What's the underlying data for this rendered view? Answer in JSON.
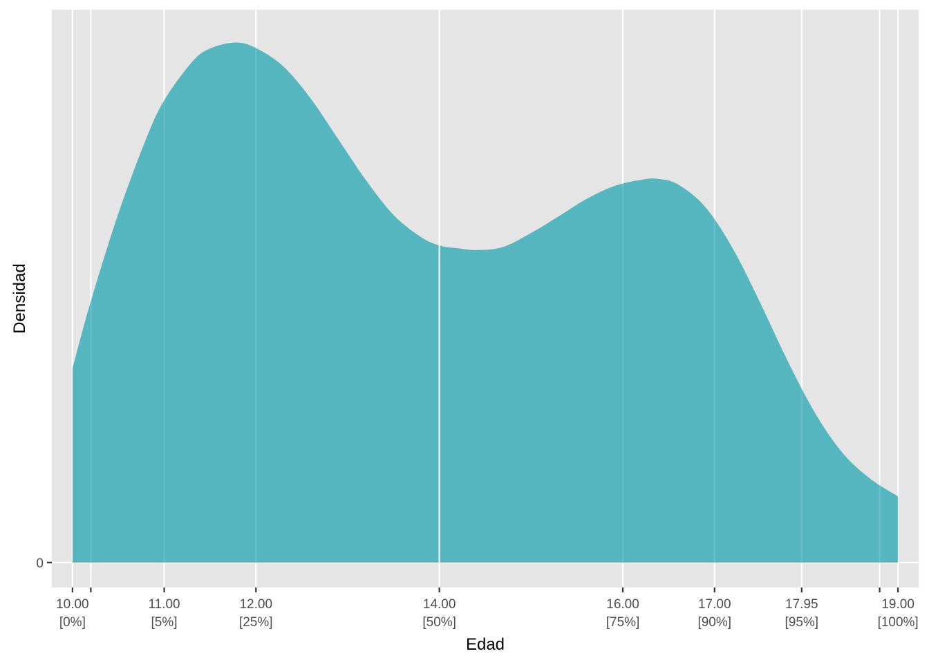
{
  "chart_data": {
    "type": "area",
    "title": "",
    "xlabel": "Edad",
    "ylabel": "Densidad",
    "xlim": [
      9.775,
      19.225
    ],
    "ylim": [
      -0.0054,
      0.1196
    ],
    "grid": true,
    "legend": "none",
    "colors": {
      "panel_background": "#e5e5e5",
      "grid_line": "#ffffff",
      "fill": "#4db3bd",
      "fill_opacity": 0.95,
      "tick_text": "#4d4d4d",
      "tick_mark": "#333333",
      "title_text": "#000000"
    },
    "x_ticks": [
      {
        "value": 10.0,
        "label": "10.00",
        "sublabel": "[0%]"
      },
      {
        "value": 10.2,
        "label": "",
        "sublabel": ""
      },
      {
        "value": 11.0,
        "label": "11.00",
        "sublabel": "[5%]"
      },
      {
        "value": 12.0,
        "label": "12.00",
        "sublabel": "[25%]"
      },
      {
        "value": 14.0,
        "label": "14.00",
        "sublabel": "[50%]"
      },
      {
        "value": 16.0,
        "label": "16.00",
        "sublabel": "[75%]"
      },
      {
        "value": 17.0,
        "label": "17.00",
        "sublabel": "[90%]"
      },
      {
        "value": 17.95,
        "label": "17.95",
        "sublabel": "[95%]"
      },
      {
        "value": 18.8,
        "label": "",
        "sublabel": ""
      },
      {
        "value": 19.0,
        "label": "19.00",
        "sublabel": "[100%]"
      }
    ],
    "y_ticks": [
      {
        "value": 0,
        "label": "0"
      }
    ],
    "series": [
      {
        "x": [
          10.0,
          10.2,
          10.5,
          10.8,
          11.0,
          11.3,
          11.5,
          11.78,
          12.0,
          12.3,
          12.6,
          12.9,
          13.2,
          13.5,
          13.8,
          14.0,
          14.2,
          14.42,
          14.7,
          15.0,
          15.3,
          15.6,
          15.9,
          16.2,
          16.38,
          16.6,
          16.9,
          17.2,
          17.5,
          17.8,
          18.1,
          18.4,
          18.7,
          19.0
        ],
        "y": [
          0.042,
          0.0565,
          0.0755,
          0.0915,
          0.1,
          0.1082,
          0.1112,
          0.1125,
          0.1113,
          0.1073,
          0.1003,
          0.0915,
          0.0827,
          0.0752,
          0.0704,
          0.0686,
          0.068,
          0.0676,
          0.0683,
          0.0713,
          0.0749,
          0.0786,
          0.0814,
          0.0828,
          0.083,
          0.0818,
          0.0769,
          0.0679,
          0.0561,
          0.0435,
          0.0322,
          0.0236,
          0.0181,
          0.0143
        ]
      }
    ]
  }
}
